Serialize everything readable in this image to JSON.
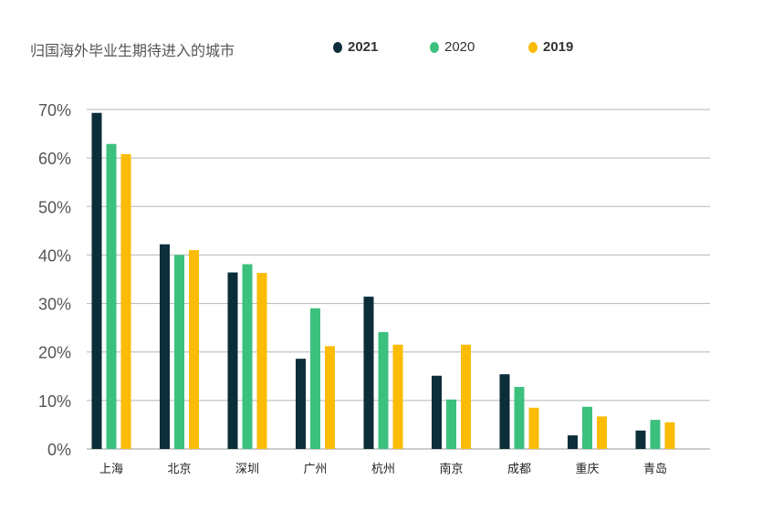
{
  "chart_data": {
    "type": "bar",
    "title": "归国海外毕业生期待进入的城市",
    "xlabel": "",
    "ylabel": "",
    "ylim": [
      0,
      70
    ],
    "yticks": [
      "0%",
      "10%",
      "20%",
      "30%",
      "40%",
      "50%",
      "60%",
      "70%"
    ],
    "grid": true,
    "legend_position": "top",
    "categories": [
      "上海",
      "北京",
      "深圳",
      "广州",
      "杭州",
      "南京",
      "成都",
      "重庆",
      "青岛"
    ],
    "series": [
      {
        "name": "2021",
        "color": "#0b2e3a",
        "values": [
          69.3,
          42.2,
          36.4,
          18.6,
          31.4,
          15.1,
          15.4,
          2.8,
          3.8
        ]
      },
      {
        "name": "2020",
        "color": "#3cc07e",
        "values": [
          62.9,
          40.0,
          38.1,
          29.0,
          24.1,
          10.2,
          12.8,
          8.7,
          6.0
        ]
      },
      {
        "name": "2019",
        "color": "#fbbc05",
        "values": [
          60.8,
          41.0,
          36.3,
          21.2,
          21.5,
          21.5,
          8.5,
          6.7,
          5.5
        ]
      }
    ]
  }
}
